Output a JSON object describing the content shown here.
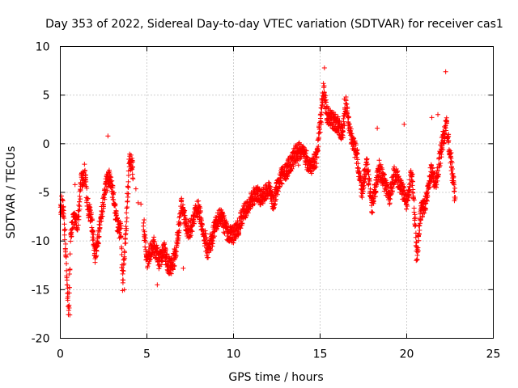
{
  "chart_data": {
    "type": "scatter",
    "title": "Day 353 of 2022, Sidereal Day-to-day VTEC variation (SDTVAR) for receiver cas1",
    "xlabel": "GPS time / hours",
    "ylabel": "SDTVAR / TECUs",
    "xlim": [
      0,
      25
    ],
    "ylim": [
      -20,
      10
    ],
    "xticks": [
      0,
      5,
      10,
      15,
      20,
      25
    ],
    "yticks": [
      -20,
      -15,
      -10,
      -5,
      0,
      5,
      10
    ],
    "grid": true,
    "legend": "none",
    "marker": "plus",
    "color": "#ff0000",
    "series": [
      {
        "name": "SDTVAR",
        "anchors": [
          [
            0.0,
            -7.0
          ],
          [
            0.1,
            -6.0
          ],
          [
            0.2,
            -7.5
          ],
          [
            0.3,
            -10.5
          ],
          [
            0.4,
            -15.0
          ],
          [
            0.5,
            -17.5
          ],
          [
            0.6,
            -9.0
          ],
          [
            0.8,
            -7.5
          ],
          [
            1.0,
            -8.5
          ],
          [
            1.2,
            -4.0
          ],
          [
            1.4,
            -3.0
          ],
          [
            1.6,
            -6.5
          ],
          [
            1.8,
            -7.8
          ],
          [
            2.0,
            -11.5
          ],
          [
            2.2,
            -9.5
          ],
          [
            2.4,
            -7.0
          ],
          [
            2.6,
            -4.5
          ],
          [
            2.8,
            -3.5
          ],
          [
            3.0,
            -4.5
          ],
          [
            3.3,
            -8.5
          ],
          [
            3.5,
            -9.0
          ],
          [
            3.6,
            -14.5
          ],
          [
            3.8,
            -8.5
          ],
          [
            4.0,
            -1.5
          ],
          [
            4.2,
            -2.8
          ],
          [
            4.8,
            -8.0
          ],
          [
            5.0,
            -12.0
          ],
          [
            5.2,
            -11.0
          ],
          [
            5.4,
            -10.5
          ],
          [
            5.7,
            -12.0
          ],
          [
            6.0,
            -11.0
          ],
          [
            6.2,
            -12.5
          ],
          [
            6.5,
            -12.5
          ],
          [
            6.8,
            -9.5
          ],
          [
            7.0,
            -6.0
          ],
          [
            7.3,
            -9.0
          ],
          [
            7.6,
            -8.5
          ],
          [
            7.8,
            -7.0
          ],
          [
            8.0,
            -6.5
          ],
          [
            8.2,
            -8.5
          ],
          [
            8.5,
            -11.0
          ],
          [
            8.8,
            -9.5
          ],
          [
            9.0,
            -8.0
          ],
          [
            9.3,
            -7.5
          ],
          [
            9.6,
            -9.0
          ],
          [
            10.0,
            -9.5
          ],
          [
            10.3,
            -8.5
          ],
          [
            10.6,
            -7.0
          ],
          [
            11.0,
            -5.8
          ],
          [
            11.3,
            -5.0
          ],
          [
            11.6,
            -5.5
          ],
          [
            12.0,
            -4.5
          ],
          [
            12.3,
            -6.0
          ],
          [
            12.7,
            -3.5
          ],
          [
            13.0,
            -3.0
          ],
          [
            13.3,
            -2.0
          ],
          [
            13.6,
            -1.0
          ],
          [
            14.0,
            -0.5
          ],
          [
            14.4,
            -2.5
          ],
          [
            14.8,
            -1.5
          ],
          [
            15.0,
            2.0
          ],
          [
            15.2,
            5.5
          ],
          [
            15.4,
            3.0
          ],
          [
            15.7,
            2.5
          ],
          [
            16.0,
            2.0
          ],
          [
            16.3,
            1.0
          ],
          [
            16.5,
            4.0
          ],
          [
            16.8,
            0.5
          ],
          [
            17.1,
            -1.0
          ],
          [
            17.4,
            -5.0
          ],
          [
            17.7,
            -2.0
          ],
          [
            18.0,
            -6.5
          ],
          [
            18.4,
            -2.5
          ],
          [
            18.7,
            -4.0
          ],
          [
            19.0,
            -5.5
          ],
          [
            19.3,
            -3.0
          ],
          [
            19.6,
            -4.0
          ],
          [
            20.0,
            -6.0
          ],
          [
            20.3,
            -3.0
          ],
          [
            20.6,
            -11.5
          ],
          [
            20.8,
            -7.0
          ],
          [
            21.1,
            -6.0
          ],
          [
            21.4,
            -3.0
          ],
          [
            21.7,
            -4.0
          ],
          [
            22.0,
            -0.5
          ],
          [
            22.3,
            2.0
          ],
          [
            22.5,
            -1.0
          ],
          [
            22.8,
            -5.5
          ]
        ],
        "outliers": [
          [
            15.25,
            7.8
          ],
          [
            22.25,
            7.4
          ],
          [
            2.75,
            0.8
          ],
          [
            16.4,
            4.6
          ],
          [
            19.85,
            2.0
          ],
          [
            21.45,
            2.7
          ],
          [
            0.85,
            -4.2
          ],
          [
            20.55,
            -12.0
          ],
          [
            7.1,
            -12.8
          ],
          [
            5.6,
            -14.5
          ],
          [
            3.7,
            -15.0
          ],
          [
            0.55,
            -17.6
          ],
          [
            13.75,
            -2.2
          ],
          [
            18.3,
            1.6
          ],
          [
            21.8,
            3.0
          ]
        ]
      }
    ]
  }
}
